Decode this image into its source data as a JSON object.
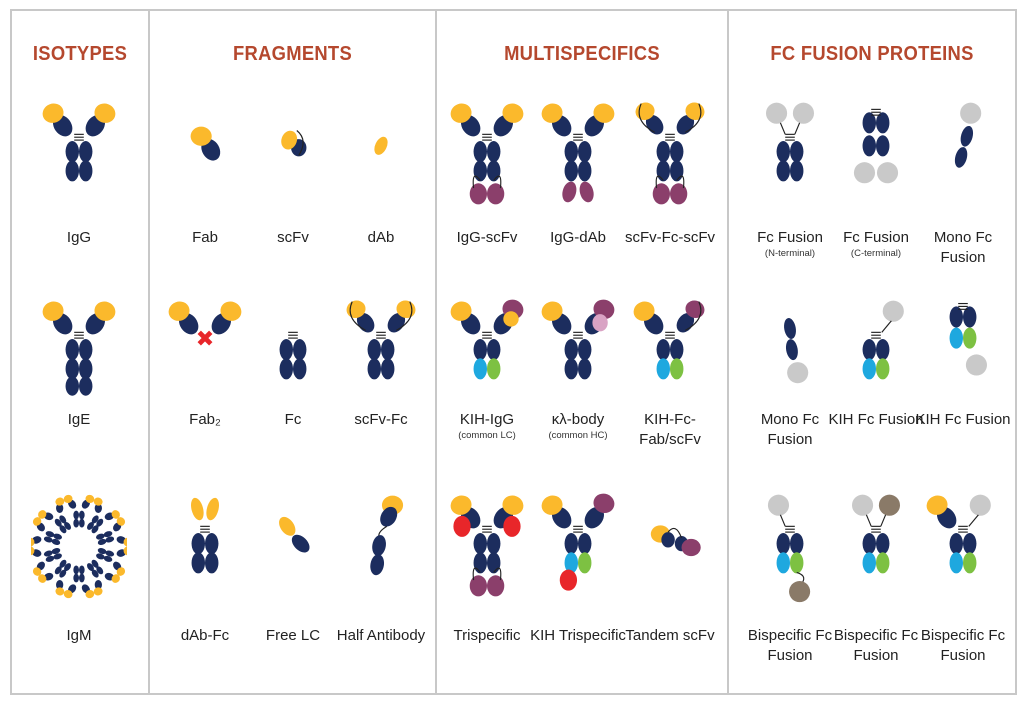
{
  "colors": {
    "heavy": "#1c2d5e",
    "light": "#fbb92c",
    "purple": "#8b3f6b",
    "red": "#e8262a",
    "cyan": "#1ea8df",
    "green": "#7dc142",
    "gray": "#c9c9c9",
    "brown": "#8a7a68",
    "pink": "#d9a3c4",
    "title": "#b5482e",
    "border": "#c8c8c8"
  },
  "panels": [
    {
      "title": "ISOTYPES",
      "cells": [
        {
          "id": "igg",
          "label": "IgG"
        },
        {
          "id": "ige",
          "label": "IgE"
        },
        {
          "id": "igm",
          "label": "IgM"
        }
      ]
    },
    {
      "title": "FRAGMENTS",
      "cells": [
        {
          "id": "fab",
          "label": "Fab"
        },
        {
          "id": "scfv",
          "label": "scFv"
        },
        {
          "id": "dab",
          "label": "dAb"
        },
        {
          "id": "fab2",
          "label": "Fab₂"
        },
        {
          "id": "fc",
          "label": "Fc"
        },
        {
          "id": "scfvfc",
          "label": "scFv-Fc"
        },
        {
          "id": "dabfc",
          "label": "dAb-Fc"
        },
        {
          "id": "freelc",
          "label": "Free LC"
        },
        {
          "id": "half",
          "label": "Half Antibody"
        }
      ]
    },
    {
      "title": "MULTISPECIFICS",
      "cells": [
        {
          "id": "iggscfv",
          "label": "IgG-scFv"
        },
        {
          "id": "iggdab",
          "label": "IgG-dAb"
        },
        {
          "id": "scfvfcscfv",
          "label": "scFv-Fc-scFv"
        },
        {
          "id": "kihigg",
          "label": "KIH-IgG",
          "sublabel": "(common LC)"
        },
        {
          "id": "klbody",
          "label": "κλ-body",
          "sublabel": "(common HC)"
        },
        {
          "id": "kihfcfab",
          "label": "KIH-Fc-Fab/scFv"
        },
        {
          "id": "tri",
          "label": "Trispecific"
        },
        {
          "id": "kihtri",
          "label": "KIH Trispecific"
        },
        {
          "id": "tandem",
          "label": "Tandem scFv"
        }
      ]
    },
    {
      "title": "FC FUSION PROTEINS",
      "cells": [
        {
          "id": "fcn",
          "label": "Fc Fusion",
          "sublabel": "(N-terminal)"
        },
        {
          "id": "fcc",
          "label": "Fc Fusion",
          "sublabel": "(C-terminal)"
        },
        {
          "id": "mono1",
          "label": "Mono Fc Fusion"
        },
        {
          "id": "mono2",
          "label": "Mono Fc Fusion"
        },
        {
          "id": "kihfc1",
          "label": "KIH Fc Fusion"
        },
        {
          "id": "kihfc2",
          "label": "KIH Fc Fusion"
        },
        {
          "id": "bis1",
          "label": "Bispecific Fc Fusion"
        },
        {
          "id": "bis2",
          "label": "Bispecific Fc Fusion"
        },
        {
          "id": "bis3",
          "label": "Bispecific Fc Fusion"
        }
      ]
    }
  ]
}
